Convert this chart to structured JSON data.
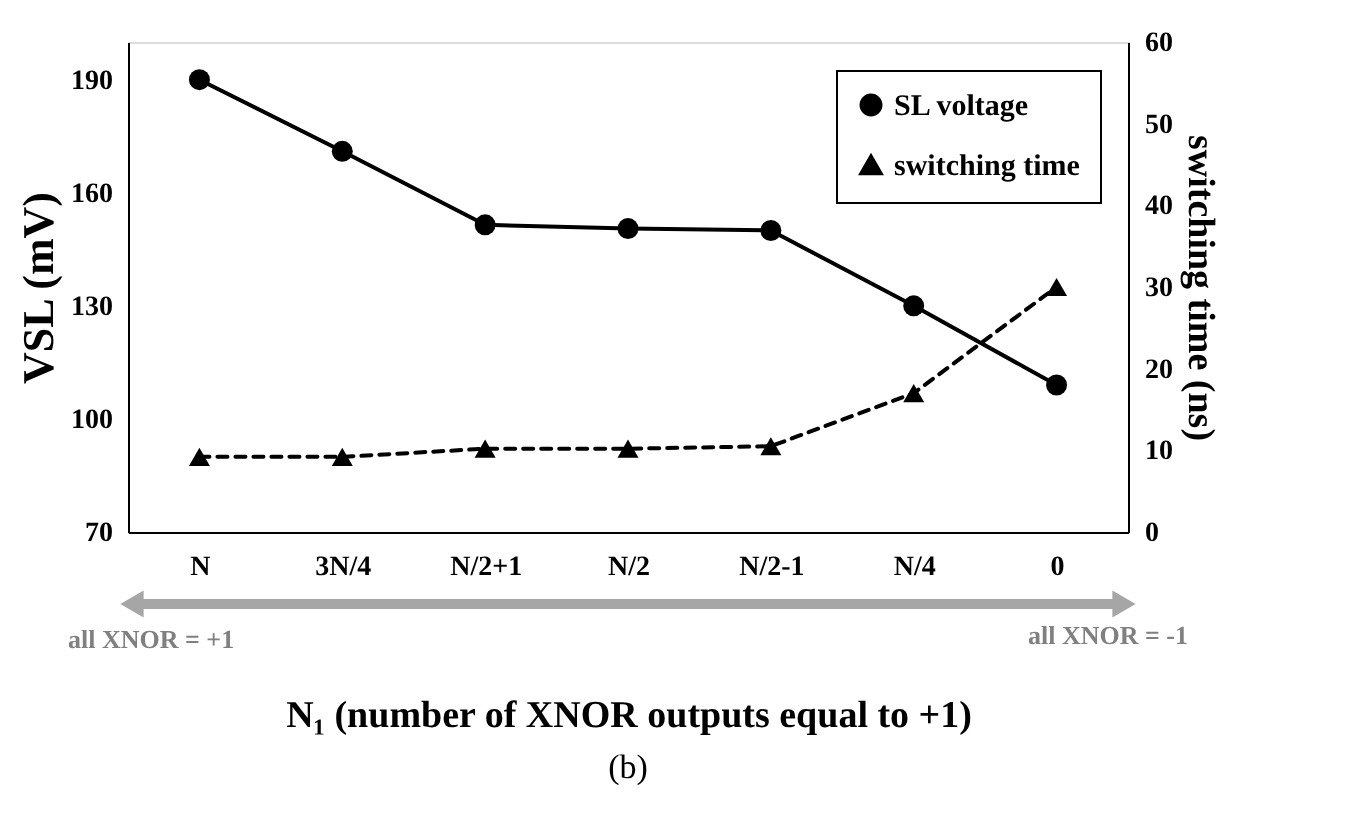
{
  "chart_data": {
    "type": "line",
    "categories": [
      "N",
      "3N/4",
      "N/2+1",
      "N/2",
      "N/2-1",
      "N/4",
      "0"
    ],
    "series": [
      {
        "name": "SL voltage",
        "color": "#000000",
        "marker": "circle",
        "line_style": "solid",
        "values": [
          190,
          171,
          151.5,
          150.5,
          150,
          130,
          109
        ]
      },
      {
        "name": "switching time",
        "color": "#000000",
        "marker": "triangle",
        "line_style": "dashed",
        "axis": "y2",
        "values": [
          9.2,
          9.2,
          10.2,
          10.2,
          10.5,
          17,
          30
        ]
      }
    ],
    "xlabel": "N₁ (number of XNOR outputs equal to +1)",
    "ylabel": "VSL (mV)",
    "y2label": "switching time (ns)",
    "ylim": [
      70,
      200
    ],
    "yticks": [
      70,
      100,
      130,
      160,
      190
    ],
    "y2lim": [
      0,
      60
    ],
    "y2ticks": [
      0,
      10,
      20,
      30,
      40,
      50,
      60
    ],
    "grid": false,
    "legend": "top right",
    "annotations": [
      "all XNOR = +1",
      "all XNOR = -1",
      "(b)"
    ]
  }
}
